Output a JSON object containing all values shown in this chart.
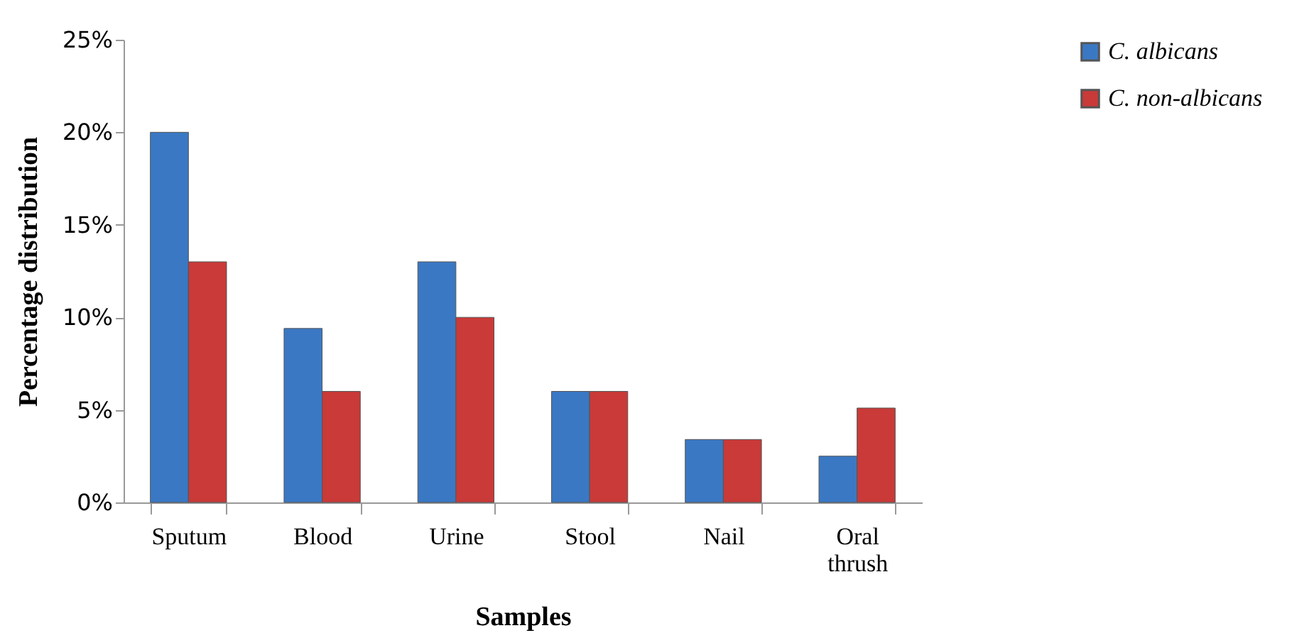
{
  "chart_data": {
    "type": "bar",
    "xlabel": "Samples",
    "ylabel": "Percentage distribution",
    "categories": [
      "Sputum",
      "Blood",
      "Urine",
      "Stool",
      "Nail",
      "Oral thrush"
    ],
    "series": [
      {
        "name": "C. albicans",
        "color": "#3a78c4",
        "values": [
          20,
          9.4,
          13,
          6,
          3.4,
          2.5
        ]
      },
      {
        "name": "C. non-albicans",
        "color": "#c93a38",
        "values": [
          13,
          6,
          10,
          6,
          3.4,
          5.1
        ]
      }
    ],
    "ylim": [
      0,
      25
    ],
    "yticks": [
      {
        "value": 0,
        "label": "0%"
      },
      {
        "value": 5,
        "label": "5%"
      },
      {
        "value": 10,
        "label": "10%"
      },
      {
        "value": 15,
        "label": "15%"
      },
      {
        "value": 20,
        "label": "20%"
      },
      {
        "value": 25,
        "label": "25%"
      }
    ],
    "grid": false,
    "legend": "right"
  }
}
